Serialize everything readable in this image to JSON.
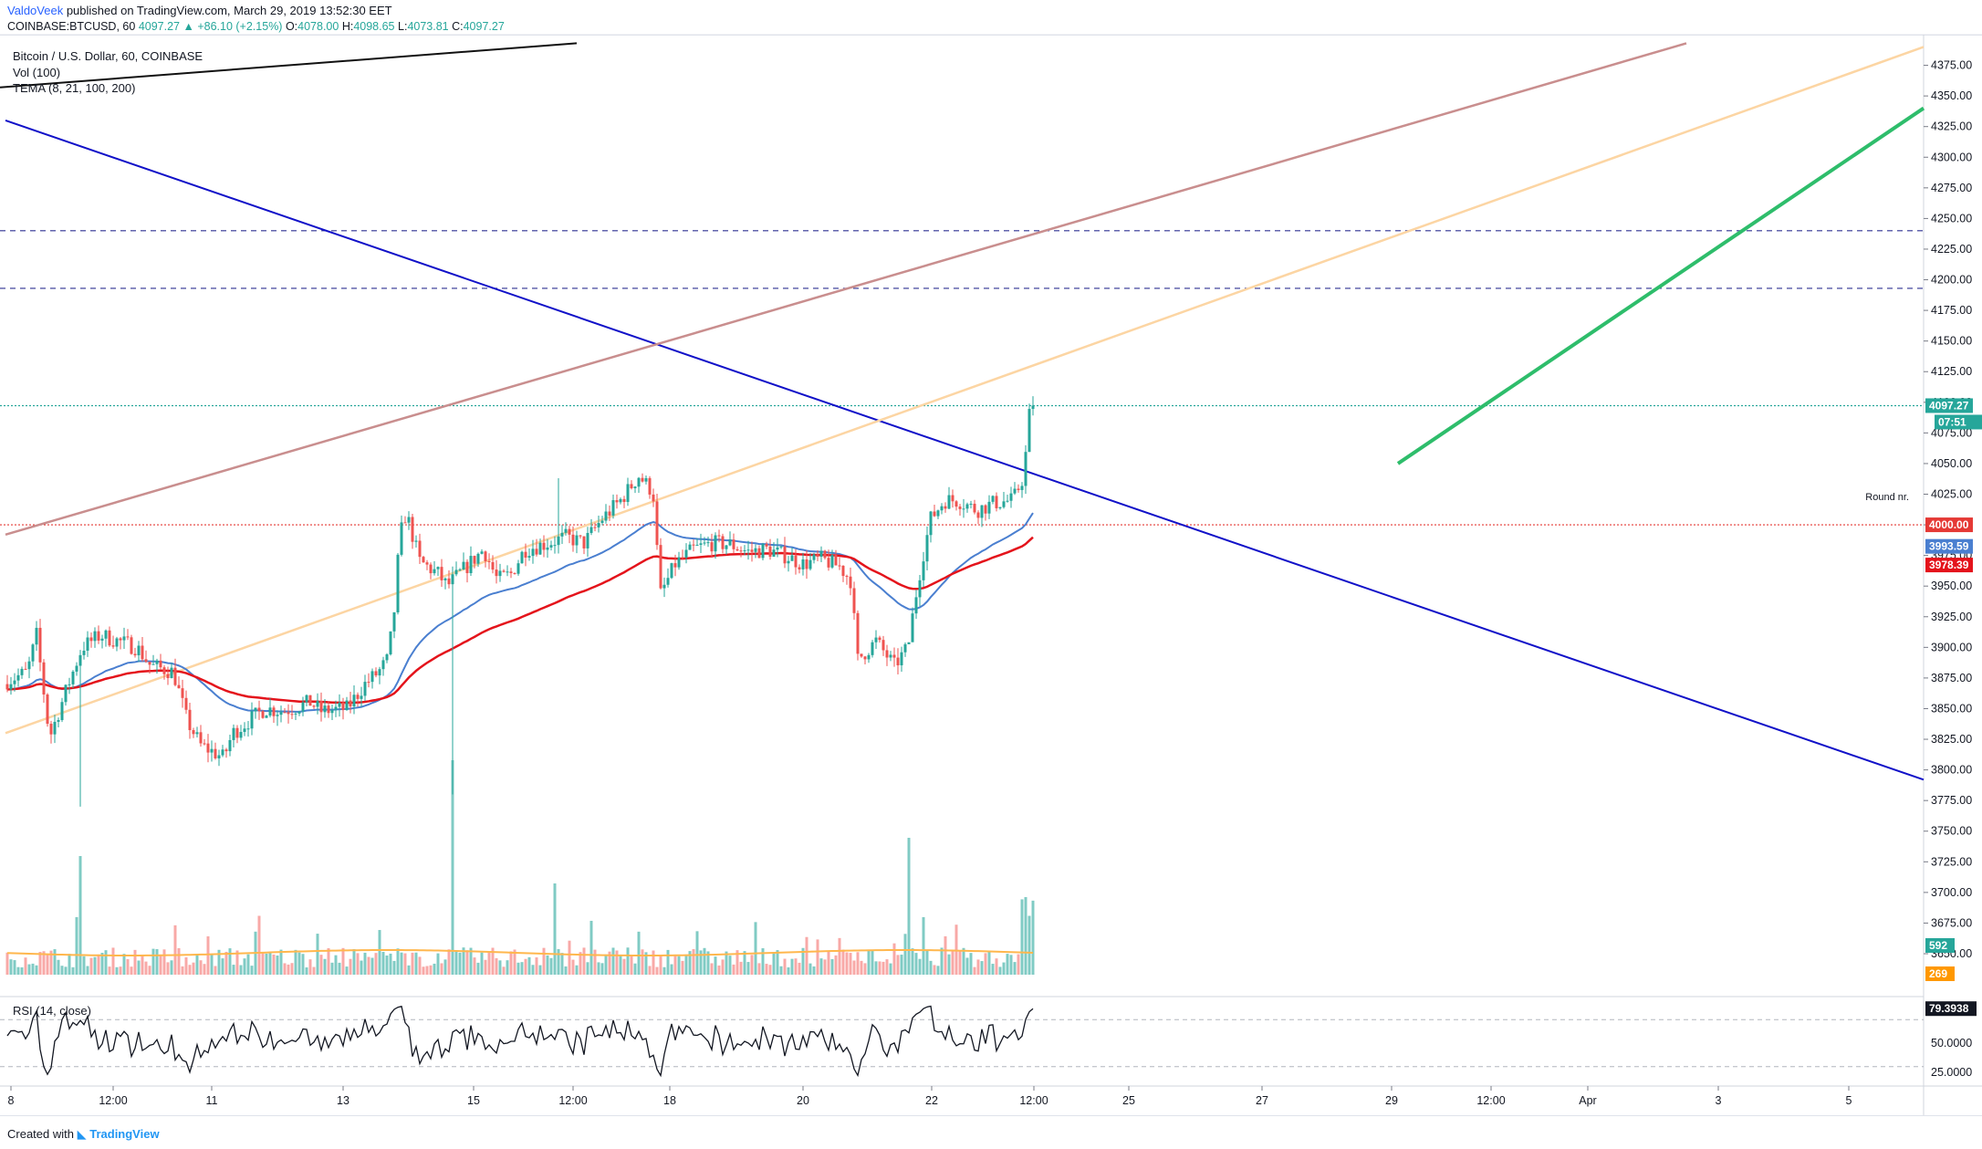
{
  "header": {
    "author": "ValdoVeek",
    "published_text": "published on TradingView.com, March 29, 2019 13:52:30 EET",
    "symbol": "COINBASE:BTCUSD, 60",
    "last": "4097.27",
    "change": "+86.10 (+2.15%)",
    "open_label": "O:",
    "open": "4078.00",
    "high_label": "H:",
    "high": "4098.65",
    "low_label": "L:",
    "low": "4073.81",
    "close_label": "C:",
    "close": "4097.27"
  },
  "legend": {
    "line1": "Bitcoin / U.S. Dollar, 60, COINBASE",
    "line2": "Vol (100)",
    "line3": "TEMA (8, 21, 100, 200)",
    "rsi": "RSI (14, close)"
  },
  "colors": {
    "up": "#26a69a",
    "down": "#ef5350",
    "vol_up": "#80cbc4",
    "vol_down": "#f8a9a7",
    "tema_blue": "#4a7fd0",
    "tema_red": "#e4131b",
    "trend_blue": "#1010c8",
    "trend_brown": "#c98e8e",
    "trend_orange": "#fcd5a3",
    "trend_green": "#2ebd6b",
    "dash_blue": "#2e3192",
    "round_red": "#e53935",
    "last_green": "#26a69a"
  },
  "price_axis": {
    "ticks": [
      "4375.00",
      "4350.00",
      "4325.00",
      "4300.00",
      "4275.00",
      "4250.00",
      "4225.00",
      "4200.00",
      "4175.00",
      "4150.00",
      "4125.00",
      "4100.00",
      "4075.00",
      "4050.00",
      "4025.00",
      "4000.00",
      "3975.00",
      "3950.00",
      "3925.00",
      "3900.00",
      "3875.00",
      "3850.00",
      "3825.00",
      "3800.00",
      "3775.00",
      "3750.00",
      "3725.00",
      "3700.00",
      "3675.00",
      "3650.00"
    ],
    "tags": [
      {
        "text": "4097.27",
        "color": "#26a69a"
      },
      {
        "text": "07:51",
        "color": "#26a69a"
      },
      {
        "text": "4000.00",
        "color": "#e53935"
      },
      {
        "text": "3993.59",
        "color": "#4a7fd0"
      },
      {
        "text": "3978.39",
        "color": "#e4131b"
      },
      {
        "text": "592",
        "color": "#26a69a"
      },
      {
        "text": "269",
        "color": "#ff9800"
      }
    ],
    "round_label": "Round nr."
  },
  "rsi_axis": {
    "ticks": [
      "50.0000",
      "25.0000"
    ],
    "tag": "79.3938"
  },
  "time_axis": {
    "labels": [
      "8",
      "12:00",
      "11",
      "13",
      "15",
      "12:00",
      "18",
      "20",
      "22",
      "12:00",
      "25",
      "27",
      "29",
      "12:00",
      "Apr",
      "3",
      "5"
    ]
  },
  "chart_data": {
    "type": "candlestick",
    "symbol": "COINBASE:BTCUSD",
    "interval": "60",
    "ylim": [
      3615,
      4400
    ],
    "horizontal_levels": [
      {
        "price": 4240,
        "style": "dashed"
      },
      {
        "price": 4193,
        "style": "dashed"
      },
      {
        "price": 4097.27,
        "style": "dotted",
        "role": "last price"
      },
      {
        "price": 4000.0,
        "style": "dotted",
        "role": "Round nr."
      }
    ],
    "indicators": {
      "tema_blue_last": 3993.59,
      "tema_red_last": 3978.39,
      "volume_last": 592,
      "volume_ma_last": 269,
      "rsi_last": 79.3938,
      "rsi_ticks": [
        50,
        25
      ]
    },
    "x_labels": [
      "8",
      "12:00",
      "11",
      "13",
      "15",
      "12:00",
      "18",
      "20",
      "22",
      "12:00",
      "25",
      "27",
      "29",
      "12:00",
      "Apr",
      "3",
      "5"
    ],
    "price_path_knots": [
      [
        0,
        3870
      ],
      [
        30,
        3880
      ],
      [
        40,
        3910
      ],
      [
        52,
        3840
      ],
      [
        56,
        3830
      ],
      [
        75,
        3870
      ],
      [
        90,
        3900
      ],
      [
        110,
        3910
      ],
      [
        150,
        3900
      ],
      [
        165,
        3885
      ],
      [
        190,
        3880
      ],
      [
        205,
        3840
      ],
      [
        220,
        3820
      ],
      [
        245,
        3810
      ],
      [
        255,
        3830
      ],
      [
        290,
        3850
      ],
      [
        310,
        3848
      ],
      [
        340,
        3855
      ],
      [
        352,
        3848
      ],
      [
        380,
        3850
      ],
      [
        400,
        3870
      ],
      [
        415,
        3880
      ],
      [
        425,
        3890
      ],
      [
        432,
        3930
      ],
      [
        438,
        3990
      ],
      [
        445,
        4010
      ],
      [
        460,
        3970
      ],
      [
        480,
        3960
      ],
      [
        490,
        3950
      ],
      [
        510,
        3965
      ],
      [
        530,
        3980
      ],
      [
        545,
        3955
      ],
      [
        560,
        3960
      ],
      [
        575,
        3980
      ],
      [
        600,
        3985
      ],
      [
        620,
        3990
      ],
      [
        640,
        3985
      ],
      [
        660,
        4005
      ],
      [
        680,
        4020
      ],
      [
        700,
        4040
      ],
      [
        712,
        4030
      ],
      [
        718,
        4020
      ],
      [
        722,
        3940
      ],
      [
        740,
        3968
      ],
      [
        760,
        3980
      ],
      [
        780,
        3985
      ],
      [
        800,
        3984
      ],
      [
        820,
        3978
      ],
      [
        840,
        3980
      ],
      [
        860,
        3975
      ],
      [
        880,
        3968
      ],
      [
        900,
        3972
      ],
      [
        920,
        3966
      ],
      [
        932,
        3955
      ],
      [
        940,
        3890
      ],
      [
        960,
        3905
      ],
      [
        980,
        3885
      ],
      [
        995,
        3900
      ],
      [
        1002,
        3935
      ],
      [
        1010,
        3970
      ],
      [
        1020,
        4005
      ],
      [
        1035,
        4020
      ],
      [
        1050,
        4020
      ],
      [
        1070,
        4012
      ],
      [
        1090,
        4018
      ],
      [
        1110,
        4020
      ],
      [
        1122,
        4040
      ],
      [
        1126,
        4075
      ],
      [
        1129,
        4097
      ]
    ]
  }
}
